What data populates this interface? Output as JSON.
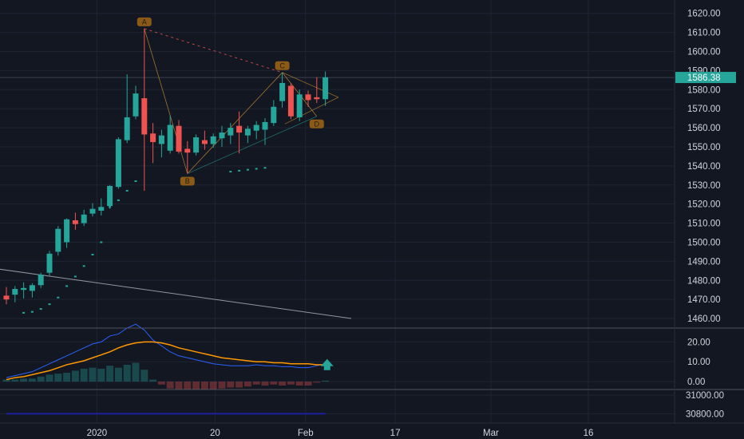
{
  "colors": {
    "background": "#131722",
    "grid": "#1f2433",
    "up": "#26a69a",
    "down": "#ef5350",
    "pattern_label_bg": "#8a5a16",
    "price_badge": "#26a69a",
    "macd_line": "#2962ff",
    "signal_line": "#ff9800",
    "trendline": "#b2b5be",
    "indicator_line": "#1e1fa0"
  },
  "chart_data": [
    {
      "type": "candlestick",
      "ylim": [
        1455,
        1627
      ],
      "ytick_labels": [
        "1620.00",
        "1610.00",
        "1600.00",
        "1590.00",
        "1580.00",
        "1570.00",
        "1560.00",
        "1550.00",
        "1540.00",
        "1530.00",
        "1520.00",
        "1510.00",
        "1500.00",
        "1490.00",
        "1480.00",
        "1470.00",
        "1460.00"
      ],
      "ytick_values": [
        1620,
        1610,
        1600,
        1590,
        1580,
        1570,
        1560,
        1550,
        1540,
        1530,
        1520,
        1510,
        1500,
        1490,
        1480,
        1470,
        1460
      ],
      "current_price": 1586.38,
      "current_price_label": "1586.38",
      "candles": [
        {
          "o": 1472.0,
          "h": 1476.5,
          "l": 1467.5,
          "c": 1470.0
        },
        {
          "o": 1472.5,
          "h": 1477.0,
          "l": 1468.5,
          "c": 1475.5
        },
        {
          "o": 1475.0,
          "h": 1479.0,
          "l": 1470.5,
          "c": 1476.0
        },
        {
          "o": 1474.5,
          "h": 1478.5,
          "l": 1471.0,
          "c": 1477.5
        },
        {
          "o": 1477.5,
          "h": 1484.0,
          "l": 1476.0,
          "c": 1483.0
        },
        {
          "o": 1484.0,
          "h": 1495.5,
          "l": 1482.5,
          "c": 1494.0
        },
        {
          "o": 1495.0,
          "h": 1508.5,
          "l": 1493.0,
          "c": 1507.0
        },
        {
          "o": 1500.0,
          "h": 1512.5,
          "l": 1497.0,
          "c": 1512.0
        },
        {
          "o": 1511.5,
          "h": 1515.5,
          "l": 1506.5,
          "c": 1509.5
        },
        {
          "o": 1510.0,
          "h": 1517.0,
          "l": 1508.5,
          "c": 1514.5
        },
        {
          "o": 1515.0,
          "h": 1520.5,
          "l": 1513.5,
          "c": 1517.5
        },
        {
          "o": 1516.5,
          "h": 1523.0,
          "l": 1514.0,
          "c": 1518.5
        },
        {
          "o": 1519.0,
          "h": 1530.0,
          "l": 1517.5,
          "c": 1529.5
        },
        {
          "o": 1529.0,
          "h": 1555.0,
          "l": 1528.0,
          "c": 1554.0
        },
        {
          "o": 1553.5,
          "h": 1588.0,
          "l": 1552.0,
          "c": 1565.5
        },
        {
          "o": 1566.0,
          "h": 1582.0,
          "l": 1564.5,
          "c": 1578.0
        },
        {
          "o": 1575.5,
          "h": 1612.0,
          "l": 1527.0,
          "c": 1556.5
        },
        {
          "o": 1557.0,
          "h": 1562.5,
          "l": 1541.5,
          "c": 1552.5
        },
        {
          "o": 1551.5,
          "h": 1559.0,
          "l": 1544.5,
          "c": 1556.0
        },
        {
          "o": 1548.0,
          "h": 1566.5,
          "l": 1546.5,
          "c": 1561.5
        },
        {
          "o": 1561.0,
          "h": 1564.0,
          "l": 1546.5,
          "c": 1547.5
        },
        {
          "o": 1549.0,
          "h": 1553.0,
          "l": 1536.0,
          "c": 1547.0
        },
        {
          "o": 1547.0,
          "h": 1556.5,
          "l": 1545.5,
          "c": 1555.0
        },
        {
          "o": 1553.5,
          "h": 1558.5,
          "l": 1548.5,
          "c": 1551.5
        },
        {
          "o": 1551.5,
          "h": 1557.0,
          "l": 1549.5,
          "c": 1555.5
        },
        {
          "o": 1554.5,
          "h": 1561.0,
          "l": 1550.0,
          "c": 1557.5
        },
        {
          "o": 1556.0,
          "h": 1562.5,
          "l": 1551.5,
          "c": 1560.0
        },
        {
          "o": 1561.0,
          "h": 1568.5,
          "l": 1546.5,
          "c": 1557.5
        },
        {
          "o": 1556.0,
          "h": 1561.0,
          "l": 1552.0,
          "c": 1559.5
        },
        {
          "o": 1558.5,
          "h": 1563.5,
          "l": 1554.0,
          "c": 1561.5
        },
        {
          "o": 1559.0,
          "h": 1565.0,
          "l": 1551.0,
          "c": 1563.0
        },
        {
          "o": 1562.5,
          "h": 1574.5,
          "l": 1561.0,
          "c": 1571.0
        },
        {
          "o": 1574.0,
          "h": 1589.0,
          "l": 1570.5,
          "c": 1583.5
        },
        {
          "o": 1582.0,
          "h": 1583.5,
          "l": 1564.5,
          "c": 1566.0
        },
        {
          "o": 1565.5,
          "h": 1580.0,
          "l": 1563.5,
          "c": 1577.5
        },
        {
          "o": 1577.5,
          "h": 1579.5,
          "l": 1571.0,
          "c": 1574.5
        },
        {
          "o": 1576.0,
          "h": 1586.5,
          "l": 1573.0,
          "c": 1575.0
        },
        {
          "o": 1575.0,
          "h": 1589.5,
          "l": 1571.5,
          "c": 1586.5
        }
      ],
      "parabolic_sar": [
        {
          "i": 2,
          "v": 1463.0
        },
        {
          "i": 3,
          "v": 1463.5
        },
        {
          "i": 4,
          "v": 1465.0
        },
        {
          "i": 5,
          "v": 1467.5
        },
        {
          "i": 6,
          "v": 1471.0
        },
        {
          "i": 7,
          "v": 1477.0
        },
        {
          "i": 8,
          "v": 1482.0
        },
        {
          "i": 9,
          "v": 1487.5
        },
        {
          "i": 10,
          "v": 1493.5
        },
        {
          "i": 11,
          "v": 1500.0
        },
        {
          "i": 12,
          "v": 1518.5
        },
        {
          "i": 13,
          "v": 1522.0
        },
        {
          "i": 14,
          "v": 1527.0
        },
        {
          "i": 15,
          "v": 1532.0
        },
        {
          "i": 26,
          "v": 1537.0
        },
        {
          "i": 27,
          "v": 1537.5
        },
        {
          "i": 28,
          "v": 1538.0
        },
        {
          "i": 29,
          "v": 1538.5
        },
        {
          "i": 30,
          "v": 1539.0
        }
      ],
      "pattern": {
        "points": [
          {
            "label": "A",
            "i": 16,
            "v": 1612.0,
            "pos": "above"
          },
          {
            "label": "B",
            "i": 21,
            "v": 1536.0,
            "pos": "below"
          },
          {
            "label": "C",
            "i": 32,
            "v": 1589.0,
            "pos": "above"
          },
          {
            "label": "D",
            "i": 36,
            "v": 1566.0,
            "pos": "below"
          }
        ]
      },
      "trendline": {
        "i0": -1,
        "v0": 1486.0,
        "i1": 40,
        "v1": 1460.0
      }
    },
    {
      "type": "line",
      "name_hidden": true,
      "ylim": [
        -4,
        27
      ],
      "ytick_labels": [
        "20.00",
        "10.00",
        "0.00"
      ],
      "ytick_values": [
        20,
        10,
        0
      ],
      "series": [
        {
          "role": "macd",
          "values": [
            2,
            3,
            4,
            5,
            7,
            9,
            11,
            13,
            15,
            17,
            19,
            20,
            23,
            24,
            27,
            29,
            26,
            21,
            18,
            15,
            13,
            12,
            11,
            10,
            9,
            8.5,
            8,
            8,
            8,
            8.5,
            8,
            8,
            7.5,
            7.5,
            7,
            7,
            8,
            9
          ]
        },
        {
          "role": "signal",
          "values": [
            1,
            2,
            2.5,
            3.5,
            4.5,
            5.5,
            7,
            8.5,
            9.5,
            10.5,
            12,
            13.5,
            15,
            17,
            18.5,
            19.5,
            20,
            20,
            19.5,
            18.5,
            17,
            16,
            15,
            14,
            13,
            12,
            11.5,
            11,
            10.5,
            10,
            10,
            9.5,
            9.5,
            9,
            9,
            9,
            8.5,
            8.5
          ]
        },
        {
          "role": "histogram",
          "values": [
            1,
            1,
            1.5,
            1.5,
            2.5,
            3.5,
            4,
            4.5,
            5.5,
            6.5,
            7,
            6.5,
            8,
            7,
            8.5,
            9.5,
            6,
            1,
            -1.5,
            -3.5,
            -4,
            -4,
            -4,
            -4,
            -4,
            -3.5,
            -3,
            -3,
            -2.5,
            -1.5,
            -2,
            -1.5,
            -2,
            -1.5,
            -2,
            -2,
            -0.5,
            0.5
          ]
        }
      ]
    },
    {
      "type": "line",
      "ylim": [
        30700,
        31060
      ],
      "ytick_labels": [
        "31000.00",
        "30800.00"
      ],
      "ytick_values": [
        31000,
        30800
      ],
      "series": [
        {
          "role": "indicator",
          "values": [
            30800,
            30800,
            30800,
            30800,
            30800,
            30800,
            30800,
            30800,
            30800,
            30800,
            30800,
            30800,
            30800,
            30800,
            30800,
            30800,
            30800,
            30800,
            30800,
            30800,
            30800,
            30800,
            30800,
            30800,
            30800,
            30800,
            30800,
            30800,
            30800,
            30800,
            30800,
            30800,
            30800,
            30800,
            30800,
            30800,
            30800,
            30800
          ]
        }
      ]
    }
  ],
  "x_axis": {
    "tick_labels": [
      "2020",
      "20",
      "Feb",
      "17",
      "Mar",
      "16"
    ],
    "tick_index": [
      10.5,
      24.2,
      34.7,
      45.1,
      56.2,
      67.5
    ]
  }
}
